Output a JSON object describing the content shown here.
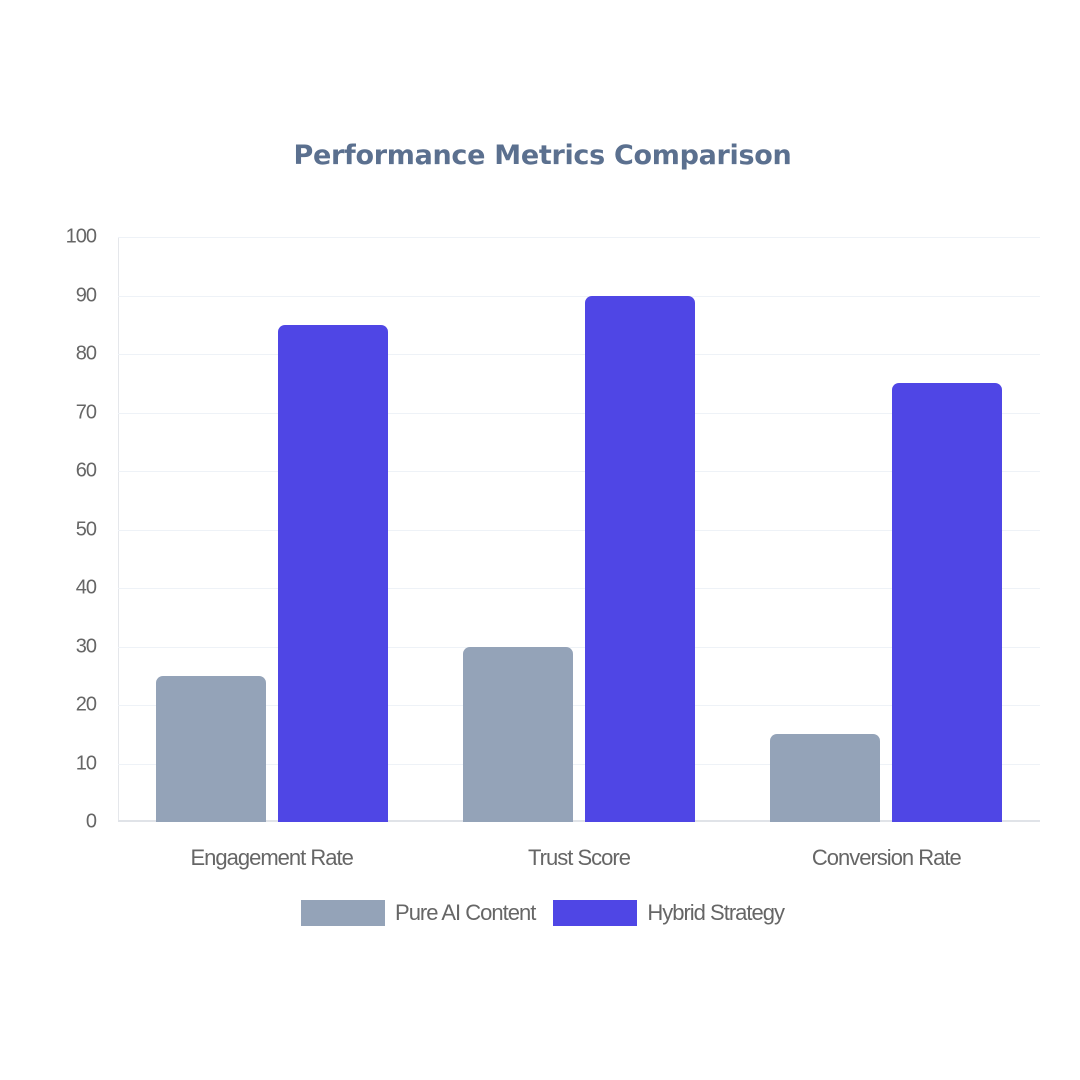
{
  "chart_data": {
    "type": "bar",
    "title": "Performance Metrics Comparison",
    "categories": [
      "Engagement Rate",
      "Trust Score",
      "Conversion Rate"
    ],
    "series": [
      {
        "name": "Pure AI Content",
        "values": [
          25,
          30,
          15
        ],
        "color": "#94a3b8"
      },
      {
        "name": "Hybrid Strategy",
        "values": [
          85,
          90,
          75
        ],
        "color": "#4f46e5"
      }
    ],
    "xlabel": "",
    "ylabel": "",
    "ylim": [
      0,
      100
    ],
    "yticks": [
      "0",
      "10",
      "20",
      "30",
      "40",
      "50",
      "60",
      "70",
      "80",
      "90",
      "100"
    ],
    "grid": true,
    "legend_position": "bottom"
  }
}
